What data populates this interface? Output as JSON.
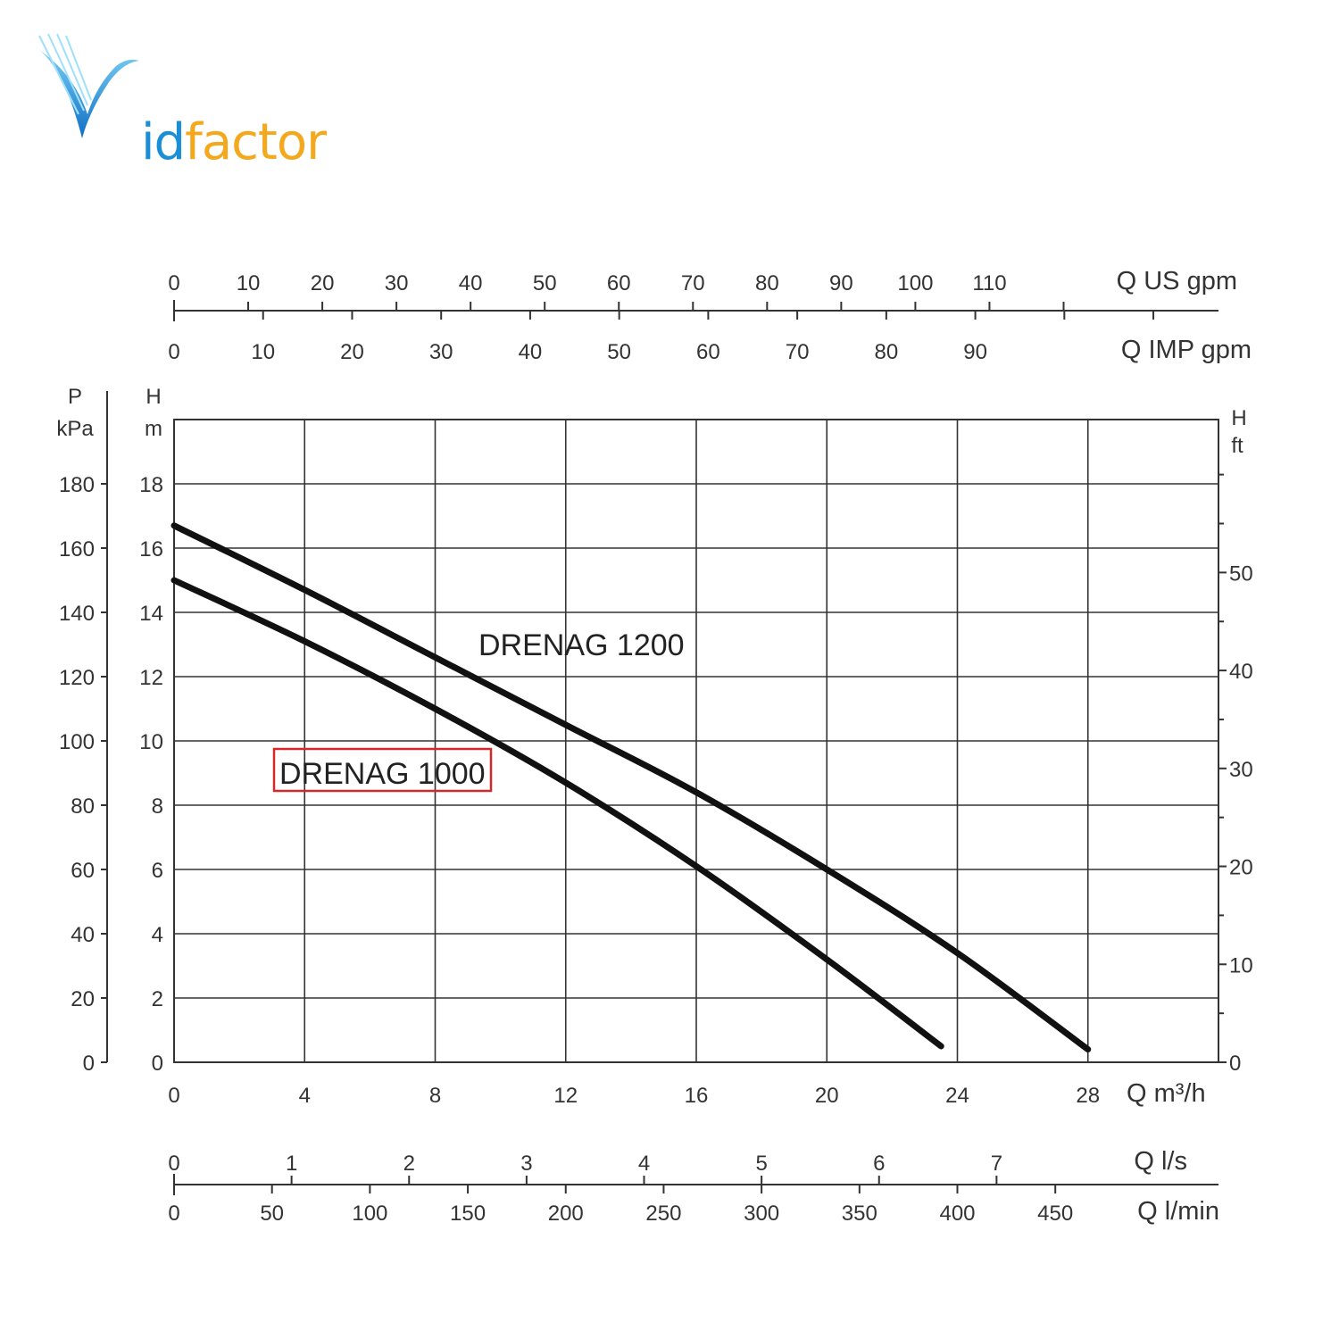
{
  "logo": {
    "prefix": "V",
    "suffix_blue": "id",
    "suffix_orange": "factor"
  },
  "colors": {
    "logo_blue": "#1a8fd8",
    "logo_orange": "#f4a81d",
    "curve": "#111111",
    "grid": "#333333",
    "highlight": "#d62828"
  },
  "chart_data": {
    "type": "line",
    "xlabel": "Q m³/h",
    "ylabel_left": [
      "H",
      "m"
    ],
    "ylabel_pressure": [
      "P",
      "kPa"
    ],
    "ylabel_right": [
      "H",
      "ft"
    ],
    "xlim": [
      0,
      32
    ],
    "ylim": [
      0,
      20
    ],
    "x_ticks": [
      0,
      4,
      8,
      12,
      16,
      20,
      24,
      28
    ],
    "y_ticks": [
      0,
      2,
      4,
      6,
      8,
      10,
      12,
      14,
      16,
      18
    ],
    "grid": true,
    "pressure_axis": {
      "label_top": "P",
      "label_unit": "kPa",
      "ticks": [
        0,
        20,
        40,
        60,
        80,
        100,
        120,
        140,
        160,
        180
      ]
    },
    "feet_axis": {
      "label_top": "H",
      "label_unit": "ft",
      "ticks": [
        0,
        10,
        20,
        30,
        40,
        50
      ]
    },
    "us_gpm_axis": {
      "label": "Q US gpm",
      "ticks": [
        0,
        10,
        20,
        30,
        40,
        50,
        60,
        70,
        80,
        90,
        100,
        110
      ]
    },
    "imp_gpm_axis": {
      "label": "Q IMP gpm",
      "ticks": [
        0,
        10,
        20,
        30,
        40,
        50,
        60,
        70,
        80,
        90
      ]
    },
    "ls_axis": {
      "label": "Q l/s",
      "ticks": [
        0,
        1,
        2,
        3,
        4,
        5,
        6,
        7
      ]
    },
    "lmin_axis": {
      "label": "Q l/min",
      "ticks": [
        0,
        50,
        100,
        150,
        200,
        250,
        300,
        350,
        400,
        450
      ]
    },
    "series": [
      {
        "name": "DRENAG 1200",
        "x": [
          0,
          4,
          8,
          12,
          16,
          20,
          24,
          28
        ],
        "y": [
          16.7,
          14.7,
          12.6,
          10.5,
          8.4,
          6.0,
          3.4,
          0.4
        ]
      },
      {
        "name": "DRENAG 1000",
        "x": [
          0,
          4,
          8,
          12,
          16,
          20,
          23.5
        ],
        "y": [
          15.0,
          13.1,
          11.0,
          8.7,
          6.1,
          3.2,
          0.5
        ]
      }
    ]
  }
}
